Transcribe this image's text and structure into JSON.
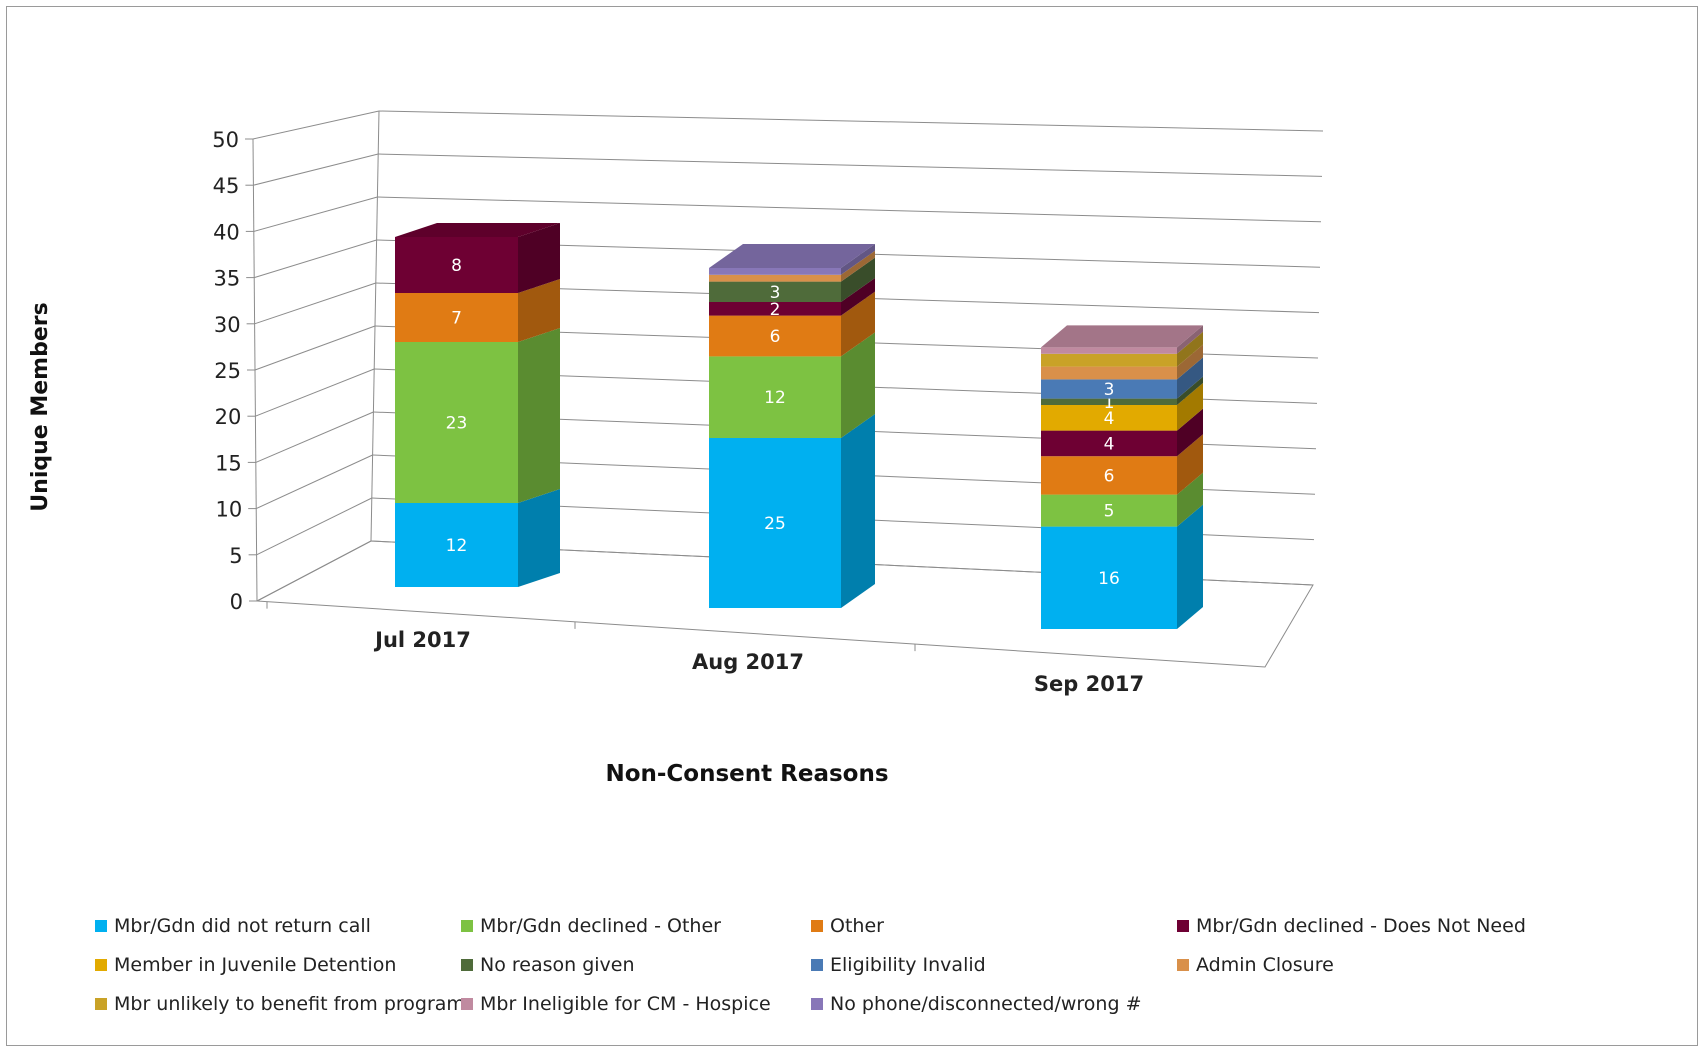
{
  "chart_data": {
    "type": "bar",
    "stacked": true,
    "three_d": true,
    "title": "",
    "xlabel": "Non-Consent Reasons",
    "ylabel": "Unique Members",
    "ylim": [
      0,
      50
    ],
    "yticks": [
      0,
      5,
      10,
      15,
      20,
      25,
      30,
      35,
      40,
      45,
      50
    ],
    "categories": [
      "Jul 2017",
      "Aug 2017",
      "Sep 2017"
    ],
    "legend_position": "bottom",
    "series": [
      {
        "name": "Mbr/Gdn did not return call",
        "color": "#00b0f0",
        "values": [
          12,
          25,
          16
        ]
      },
      {
        "name": "Mbr/Gdn declined - Other",
        "color": "#7dc242",
        "values": [
          23,
          12,
          5
        ]
      },
      {
        "name": "Other",
        "color": "#e07b14",
        "values": [
          7,
          6,
          6
        ]
      },
      {
        "name": "Mbr/Gdn declined - Does Not Need",
        "color": "#6e0033",
        "values": [
          8,
          2,
          4
        ]
      },
      {
        "name": "Member in Juvenile Detention",
        "color": "#e2aa00",
        "values": [
          0,
          0,
          4
        ]
      },
      {
        "name": "No reason given",
        "color": "#4f6b3a",
        "values": [
          0,
          3,
          1
        ]
      },
      {
        "name": "Eligibility Invalid",
        "color": "#4a7ab5",
        "values": [
          0,
          0,
          3
        ]
      },
      {
        "name": "Admin Closure",
        "color": "#d9904a",
        "values": [
          0,
          1,
          2
        ]
      },
      {
        "name": "Mbr unlikely to benefit from program",
        "color": "#c9a227",
        "values": [
          0,
          0,
          2
        ]
      },
      {
        "name": "Mbr Ineligible for CM - Hospice",
        "color": "#c08aa0",
        "values": [
          0,
          0,
          1
        ]
      },
      {
        "name": "No phone/disconnected/wrong #",
        "color": "#8877b8",
        "values": [
          0,
          1,
          0
        ]
      }
    ],
    "data_labels": [
      [
        12,
        23,
        7,
        8,
        null,
        null,
        null,
        null,
        null,
        null,
        null
      ],
      [
        25,
        12,
        6,
        2,
        null,
        3,
        null,
        null,
        null,
        null,
        null
      ],
      [
        16,
        5,
        6,
        4,
        4,
        1,
        3,
        null,
        null,
        null,
        null
      ]
    ]
  }
}
